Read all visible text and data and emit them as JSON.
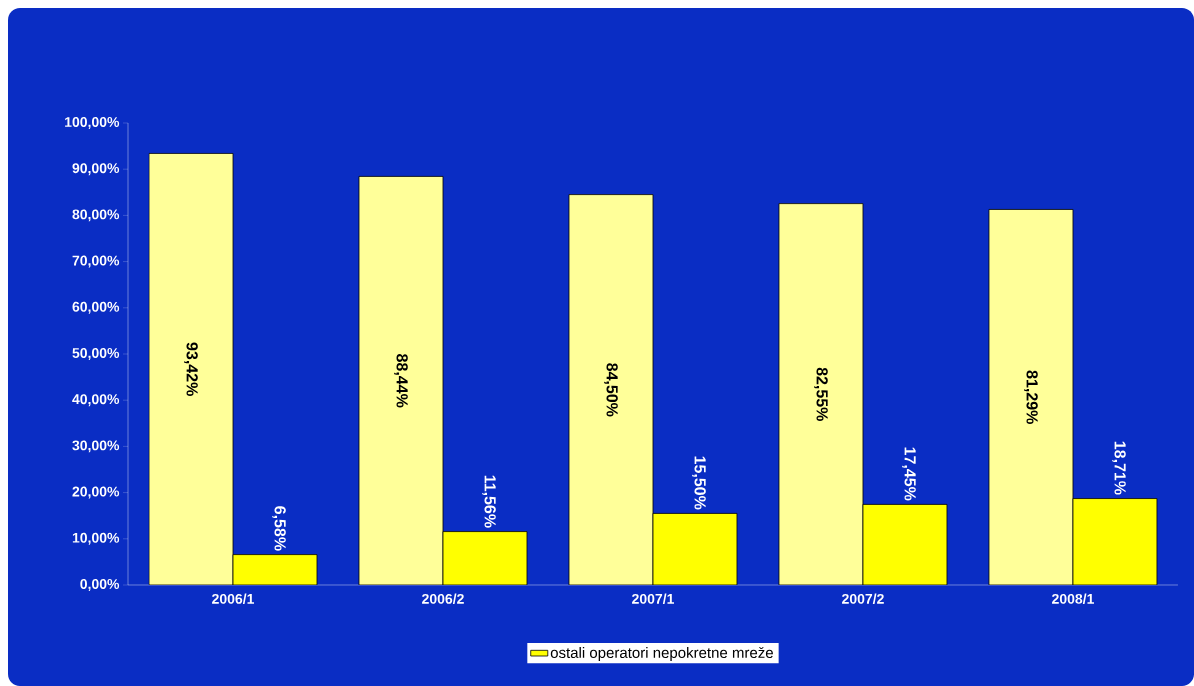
{
  "chart_data": {
    "type": "bar",
    "categories": [
      "2006/1",
      "2006/2",
      "2007/1",
      "2007/2",
      "2008/1"
    ],
    "series": [
      {
        "color": "#ffff99",
        "values": [
          93.42,
          88.44,
          84.5,
          82.55,
          81.29
        ],
        "value_labels": [
          "93,42%",
          "88,44%",
          "84,50%",
          "82,55%",
          "81,29%"
        ]
      },
      {
        "name": "ostali operatori nepokretne mreže",
        "color": "#ffff00",
        "values": [
          6.58,
          11.56,
          15.5,
          17.45,
          18.71
        ],
        "value_labels": [
          "6,58%",
          "11,56%",
          "15,50%",
          "17,45%",
          "18,71%"
        ]
      }
    ],
    "ylim": [
      0,
      100
    ],
    "yticks": [
      {
        "value": 0,
        "label": "0,00%"
      },
      {
        "value": 10,
        "label": "10,00%"
      },
      {
        "value": 20,
        "label": "20,00%"
      },
      {
        "value": 30,
        "label": "30,00%"
      },
      {
        "value": 40,
        "label": "40,00%"
      },
      {
        "value": 50,
        "label": "50,00%"
      },
      {
        "value": 60,
        "label": "60,00%"
      },
      {
        "value": 70,
        "label": "70,00%"
      },
      {
        "value": 80,
        "label": "80,00%"
      },
      {
        "value": 90,
        "label": "90,00%"
      },
      {
        "value": 100,
        "label": "100,00%"
      }
    ],
    "grid": false,
    "legend": "bottom"
  }
}
